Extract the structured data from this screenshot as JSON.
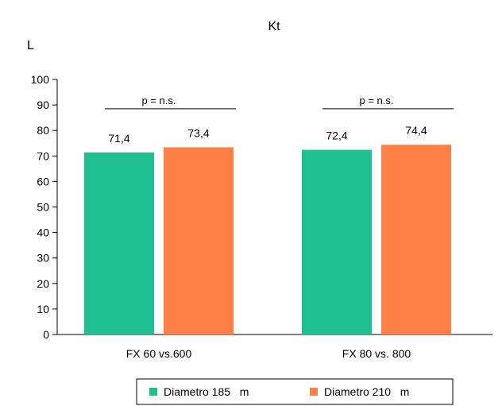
{
  "chart_data": {
    "type": "bar",
    "title": "Kt",
    "ylabel": "L",
    "xlabel": "",
    "ylim": [
      0,
      100
    ],
    "yticks": [
      0,
      10,
      20,
      30,
      40,
      50,
      60,
      70,
      80,
      90,
      100
    ],
    "categories": [
      "FX 60 vs.600",
      "FX 80 vs. 800"
    ],
    "series": [
      {
        "name": "Diametro 185   m",
        "color": "#1fbf8f",
        "values": [
          71.4,
          72.4
        ],
        "labels": [
          "71,4",
          "72,4"
        ]
      },
      {
        "name": "Diametro 210   m",
        "color": "#ff7f45",
        "values": [
          73.4,
          74.4
        ],
        "labels": [
          "73,4",
          "74,4"
        ]
      }
    ],
    "annotations": [
      "p = n.s.",
      "p = n.s."
    ],
    "legend": "bottom",
    "grid": false
  }
}
